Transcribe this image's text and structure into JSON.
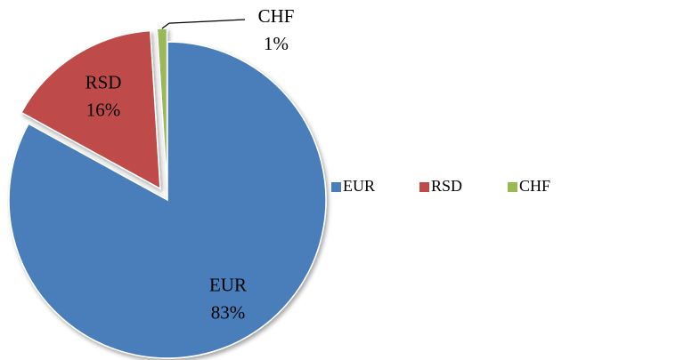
{
  "chart_data": {
    "type": "pie",
    "categories": [
      "EUR",
      "RSD",
      "CHF"
    ],
    "values": [
      83,
      16,
      1
    ],
    "value_labels": [
      "83%",
      "16%",
      "1%"
    ],
    "colors": [
      "#4a7ebb",
      "#be4b48",
      "#98b954"
    ],
    "exploded": [
      false,
      true,
      true
    ],
    "legend": "right"
  }
}
